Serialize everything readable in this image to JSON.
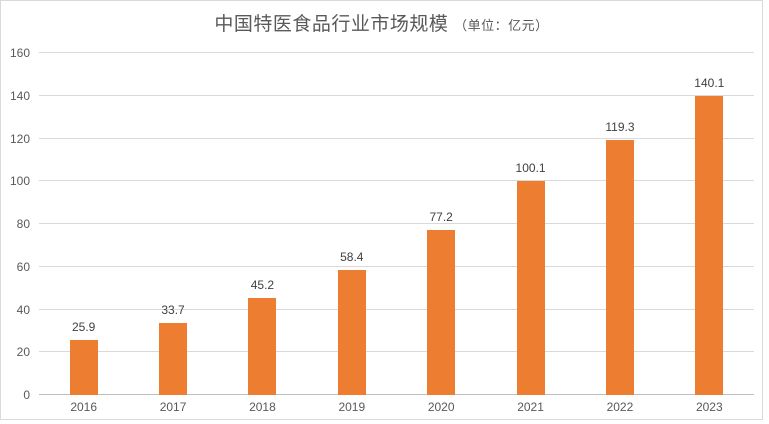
{
  "title": {
    "main": "中国特医食品行业市场规模",
    "unit": "（单位：亿元）",
    "color": "#595959"
  },
  "chart_data": {
    "type": "bar",
    "title": "中国特医食品行业市场规模（单位：亿元）",
    "categories": [
      "2016",
      "2017",
      "2018",
      "2019",
      "2020",
      "2021",
      "2022",
      "2023"
    ],
    "values": [
      25.9,
      33.7,
      45.2,
      58.4,
      77.2,
      100.1,
      119.3,
      140.1
    ],
    "data_labels": [
      "25.9",
      "33.7",
      "45.2",
      "58.4",
      "77.2",
      "100.1",
      "119.3",
      "140.1"
    ],
    "xlabel": "",
    "ylabel": "",
    "ylim": [
      0,
      160
    ],
    "yticks": [
      0,
      20,
      40,
      60,
      80,
      100,
      120,
      140,
      160
    ],
    "grid": true,
    "legend": "none",
    "data_label_position": "outside-end",
    "colors": {
      "bar": "#ED7D31",
      "data_label": "#404040",
      "axis_label": "#595959",
      "gridline": "#D9D9D9",
      "axis_line": "#BFBFBF",
      "frame_border": "#D9D9D9",
      "background": "#FFFFFF"
    }
  }
}
